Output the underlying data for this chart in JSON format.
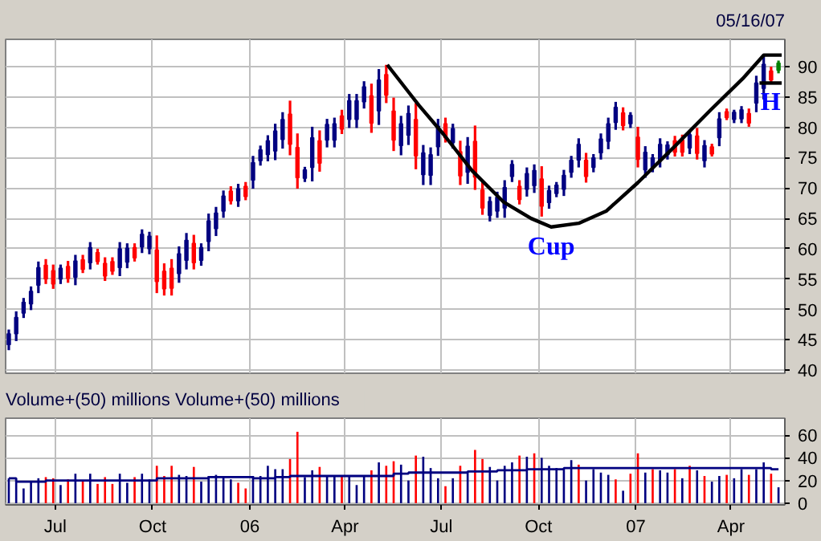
{
  "chart_data": [
    {
      "type": "candlestick",
      "subtitle": "05/16/07",
      "x": [
        "2005-05-18",
        "2005-05-25",
        "2005-06-01",
        "2005-06-08",
        "2005-06-15",
        "2005-06-22",
        "2005-06-29",
        "2005-07-06",
        "2005-07-13",
        "2005-07-20",
        "2005-07-27",
        "2005-08-03",
        "2005-08-10",
        "2005-08-17",
        "2005-08-24",
        "2005-08-31",
        "2005-09-07",
        "2005-09-14",
        "2005-09-21",
        "2005-09-28",
        "2005-10-05",
        "2005-10-12",
        "2005-10-19",
        "2005-10-26",
        "2005-11-02",
        "2005-11-09",
        "2005-11-16",
        "2005-11-23",
        "2005-11-30",
        "2005-12-07",
        "2005-12-14",
        "2005-12-21",
        "2005-12-28",
        "2006-01-04",
        "2006-01-11",
        "2006-01-18",
        "2006-01-25",
        "2006-02-01",
        "2006-02-08",
        "2006-02-15",
        "2006-02-22",
        "2006-03-01",
        "2006-03-08",
        "2006-03-15",
        "2006-03-22",
        "2006-03-29",
        "2006-04-05",
        "2006-04-12",
        "2006-04-19",
        "2006-04-26",
        "2006-05-03",
        "2006-05-10",
        "2006-05-17",
        "2006-05-24",
        "2006-05-31",
        "2006-06-07",
        "2006-06-14",
        "2006-06-21",
        "2006-06-28",
        "2006-07-05",
        "2006-07-12",
        "2006-07-19",
        "2006-07-26",
        "2006-08-02",
        "2006-08-09",
        "2006-08-16",
        "2006-08-23",
        "2006-08-30",
        "2006-09-06",
        "2006-09-13",
        "2006-09-20",
        "2006-09-27",
        "2006-10-04",
        "2006-10-11",
        "2006-10-18",
        "2006-10-25",
        "2006-11-01",
        "2006-11-08",
        "2006-11-15",
        "2006-11-22",
        "2006-11-29",
        "2006-12-06",
        "2006-12-13",
        "2006-12-20",
        "2006-12-27",
        "2007-01-03",
        "2007-01-10",
        "2007-01-17",
        "2007-01-24",
        "2007-01-31",
        "2007-02-07",
        "2007-02-14",
        "2007-02-21",
        "2007-02-28",
        "2007-03-07",
        "2007-03-14",
        "2007-03-21",
        "2007-03-28",
        "2007-04-04",
        "2007-04-11",
        "2007-04-18",
        "2007-04-25",
        "2007-05-02",
        "2007-05-09",
        "2007-05-16"
      ],
      "ohlc": [
        [
          44.2,
          46.7,
          43.3,
          46.0
        ],
        [
          46.0,
          49.7,
          44.8,
          48.7
        ],
        [
          49.4,
          51.9,
          48.6,
          51.2
        ],
        [
          50.9,
          53.8,
          49.9,
          53.0
        ],
        [
          54.0,
          57.9,
          52.7,
          56.9
        ],
        [
          57.3,
          58.3,
          54.2,
          55.0
        ],
        [
          56.4,
          57.4,
          53.4,
          54.2
        ],
        [
          55.0,
          57.4,
          54.2,
          56.8
        ],
        [
          57.1,
          58.0,
          54.4,
          55.1
        ],
        [
          55.3,
          59.0,
          54.0,
          58.0
        ],
        [
          58.2,
          59.0,
          56.0,
          56.6
        ],
        [
          57.7,
          61.1,
          56.6,
          60.2
        ],
        [
          59.4,
          60.0,
          57.4,
          57.9
        ],
        [
          57.6,
          58.6,
          54.7,
          55.5
        ],
        [
          57.9,
          58.6,
          55.7,
          56.3
        ],
        [
          56.9,
          61.1,
          55.5,
          60.0
        ],
        [
          57.8,
          60.9,
          56.8,
          60.1
        ],
        [
          60.2,
          60.9,
          57.9,
          58.5
        ],
        [
          60.3,
          63.2,
          59.3,
          62.4
        ],
        [
          60.0,
          62.8,
          59.1,
          62.1
        ],
        [
          59.8,
          62.2,
          52.7,
          54.6
        ],
        [
          56.3,
          57.6,
          52.3,
          53.4
        ],
        [
          56.8,
          58.3,
          52.3,
          53.5
        ],
        [
          55.9,
          60.4,
          54.4,
          59.2
        ],
        [
          58.1,
          62.6,
          56.6,
          61.4
        ],
        [
          60.9,
          62.3,
          56.6,
          57.7
        ],
        [
          58.1,
          60.9,
          57.2,
          60.2
        ],
        [
          61.2,
          65.8,
          59.6,
          64.6
        ],
        [
          63.3,
          66.9,
          62.1,
          65.9
        ],
        [
          66.2,
          69.6,
          65.1,
          68.7
        ],
        [
          69.5,
          70.3,
          67.3,
          67.9
        ],
        [
          67.9,
          70.7,
          66.9,
          69.9
        ],
        [
          70.3,
          71.0,
          68.0,
          68.6
        ],
        [
          71.3,
          75.3,
          69.9,
          74.2
        ],
        [
          74.5,
          77.0,
          73.7,
          76.3
        ],
        [
          75.5,
          78.7,
          74.4,
          77.8
        ],
        [
          76.1,
          80.6,
          74.6,
          79.4
        ],
        [
          78.0,
          82.5,
          76.5,
          81.3
        ],
        [
          82.2,
          84.4,
          75.4,
          77.2
        ],
        [
          76.7,
          79.0,
          69.9,
          71.7
        ],
        [
          71.6,
          73.5,
          71.0,
          73.0
        ],
        [
          73.4,
          80.1,
          71.1,
          78.3
        ],
        [
          77.8,
          79.5,
          72.7,
          74.1
        ],
        [
          77.9,
          81.4,
          76.7,
          80.5
        ],
        [
          77.9,
          81.6,
          76.7,
          80.6
        ],
        [
          81.9,
          82.9,
          78.9,
          79.7
        ],
        [
          81.3,
          85.5,
          79.9,
          84.4
        ],
        [
          81.3,
          85.5,
          79.9,
          84.4
        ],
        [
          84.2,
          87.6,
          83.1,
          86.7
        ],
        [
          85.2,
          87.2,
          79.1,
          80.7
        ],
        [
          82.7,
          89.6,
          80.4,
          87.8
        ],
        [
          88.7,
          90.3,
          84.0,
          85.3
        ],
        [
          82.7,
          84.9,
          76.1,
          77.9
        ],
        [
          77.0,
          81.9,
          75.4,
          80.6
        ],
        [
          78.7,
          83.6,
          77.1,
          82.3
        ],
        [
          81.3,
          84.0,
          73.1,
          75.3
        ],
        [
          72.2,
          77.1,
          70.5,
          75.8
        ],
        [
          72.1,
          76.7,
          70.5,
          75.5
        ],
        [
          76.8,
          81.4,
          75.3,
          80.2
        ],
        [
          80.6,
          81.6,
          77.5,
          78.3
        ],
        [
          77.5,
          80.6,
          76.5,
          79.8
        ],
        [
          76.0,
          77.8,
          70.5,
          72.0
        ],
        [
          72.6,
          78.4,
          70.7,
          76.9
        ],
        [
          77.7,
          80.3,
          69.7,
          71.8
        ],
        [
          69.7,
          71.1,
          65.6,
          66.7
        ],
        [
          65.5,
          68.6,
          64.5,
          67.8
        ],
        [
          66.2,
          69.4,
          65.1,
          68.5
        ],
        [
          66.7,
          71.3,
          65.1,
          70.1
        ],
        [
          71.9,
          74.6,
          71.0,
          73.9
        ],
        [
          70.3,
          71.3,
          67.3,
          68.1
        ],
        [
          69.8,
          73.4,
          68.6,
          72.4
        ],
        [
          70.4,
          73.9,
          69.2,
          72.9
        ],
        [
          71.5,
          73.6,
          65.3,
          67.0
        ],
        [
          67.6,
          70.4,
          66.6,
          69.6
        ],
        [
          69.1,
          71.0,
          68.5,
          70.5
        ],
        [
          69.8,
          73.0,
          68.7,
          72.1
        ],
        [
          72.6,
          75.3,
          71.7,
          74.6
        ],
        [
          74.6,
          78.2,
          73.4,
          77.2
        ],
        [
          74.6,
          75.8,
          70.9,
          71.9
        ],
        [
          73.4,
          75.6,
          72.6,
          75.0
        ],
        [
          75.8,
          79.0,
          74.7,
          78.1
        ],
        [
          77.7,
          81.6,
          76.4,
          80.6
        ],
        [
          80.8,
          84.2,
          79.6,
          83.3
        ],
        [
          82.4,
          83.3,
          79.5,
          80.3
        ],
        [
          80.6,
          82.5,
          79.9,
          82.0
        ],
        [
          78.4,
          80.1,
          73.4,
          74.7
        ],
        [
          73.0,
          76.9,
          71.7,
          75.9
        ],
        [
          73.4,
          75.6,
          72.6,
          75.0
        ],
        [
          74.6,
          78.2,
          73.4,
          77.2
        ],
        [
          75.5,
          77.7,
          74.7,
          77.1
        ],
        [
          77.8,
          78.6,
          75.2,
          75.9
        ],
        [
          77.9,
          78.8,
          75.2,
          75.9
        ],
        [
          76.6,
          79.6,
          75.6,
          78.8
        ],
        [
          78.6,
          79.9,
          74.7,
          75.7
        ],
        [
          74.5,
          77.9,
          73.4,
          77.0
        ],
        [
          76.8,
          77.3,
          75.2,
          75.6
        ],
        [
          78.3,
          82.5,
          76.9,
          81.4
        ],
        [
          82.6,
          83.1,
          81.2,
          81.6
        ],
        [
          81.3,
          82.9,
          80.7,
          82.5
        ],
        [
          81.4,
          83.5,
          80.7,
          82.9
        ],
        [
          82.3,
          83.1,
          80.1,
          80.7
        ],
        [
          84.0,
          88.5,
          82.5,
          87.3
        ],
        [
          86.4,
          91.9,
          84.6,
          90.4
        ],
        [
          89.3,
          90.0,
          87.2,
          87.8
        ],
        [
          89.4,
          91.0,
          88.9,
          90.6
        ]
      ],
      "colors": [
        "#000080",
        "#000080",
        "#000080",
        "#000080",
        "#000080",
        "#ff0000",
        "#ff0000",
        "#000080",
        "#ff0000",
        "#000080",
        "#ff0000",
        "#000080",
        "#ff0000",
        "#ff0000",
        "#ff0000",
        "#000080",
        "#000080",
        "#ff0000",
        "#000080",
        "#000080",
        "#ff0000",
        "#ff0000",
        "#ff0000",
        "#000080",
        "#000080",
        "#ff0000",
        "#000080",
        "#000080",
        "#000080",
        "#000080",
        "#ff0000",
        "#000080",
        "#ff0000",
        "#000080",
        "#000080",
        "#000080",
        "#000080",
        "#000080",
        "#ff0000",
        "#ff0000",
        "#000080",
        "#000080",
        "#ff0000",
        "#000080",
        "#000080",
        "#ff0000",
        "#000080",
        "#000080",
        "#000080",
        "#ff0000",
        "#000080",
        "#ff0000",
        "#ff0000",
        "#000080",
        "#000080",
        "#ff0000",
        "#000080",
        "#000080",
        "#000080",
        "#ff0000",
        "#000080",
        "#ff0000",
        "#000080",
        "#ff0000",
        "#ff0000",
        "#000080",
        "#000080",
        "#000080",
        "#000080",
        "#ff0000",
        "#000080",
        "#000080",
        "#ff0000",
        "#000080",
        "#000080",
        "#000080",
        "#000080",
        "#000080",
        "#ff0000",
        "#000080",
        "#000080",
        "#000080",
        "#000080",
        "#ff0000",
        "#000080",
        "#ff0000",
        "#000080",
        "#000080",
        "#000080",
        "#000080",
        "#ff0000",
        "#ff0000",
        "#000080",
        "#ff0000",
        "#000080",
        "#ff0000",
        "#000080",
        "#ff0000",
        "#000080",
        "#000080",
        "#ff0000",
        "#000080",
        "#000080",
        "#ff0000",
        "#008000"
      ],
      "series": [
        {
          "type": "line",
          "color": "#000000",
          "x": [
            "2006-05-11",
            "2006-06-10",
            "2006-07-03",
            "2006-07-30",
            "2006-08-29",
            "2006-09-24",
            "2006-10-13",
            "2006-11-08",
            "2006-12-04",
            "2007-01-03",
            "2007-02-07",
            "2007-03-13",
            "2007-04-12",
            "2007-05-02",
            "2007-05-19"
          ],
          "values": [
            90.3,
            83.6,
            78.9,
            72.9,
            67.7,
            65.0,
            63.6,
            64.2,
            66.2,
            70.9,
            76.9,
            82.9,
            88.0,
            91.9,
            91.9
          ]
        },
        {
          "type": "line",
          "color": "#000000",
          "x": [
            "2007-04-28",
            "2007-05-19"
          ],
          "values": [
            87.3,
            87.3
          ]
        }
      ],
      "annotations": [
        "Cup",
        "H"
      ],
      "xlim": [
        "2005-05-15",
        "2007-05-22"
      ],
      "xticks": [
        {
          "value": "2005-07-01",
          "label": null
        },
        {
          "value": "2005-10-01",
          "label": null
        },
        {
          "value": "2006-01-01",
          "label": null
        },
        {
          "value": "2006-04-01",
          "label": null
        },
        {
          "value": "2006-07-01",
          "label": null
        },
        {
          "value": "2006-10-01",
          "label": null
        },
        {
          "value": "2007-01-01",
          "label": null
        },
        {
          "value": "2007-04-01",
          "label": null
        }
      ],
      "ylim": [
        39.5,
        94.5
      ],
      "yticks": [
        40,
        45,
        50,
        55,
        60,
        65,
        70,
        75,
        80,
        85,
        90
      ],
      "grid": true,
      "tick_labels": "y"
    },
    {
      "type": "bar",
      "title": "Volume+(50) millions",
      "subtitle": "Volume+(50) millions",
      "x": [
        "2005-05-18",
        "2005-05-25",
        "2005-06-01",
        "2005-06-08",
        "2005-06-15",
        "2005-06-22",
        "2005-06-29",
        "2005-07-06",
        "2005-07-13",
        "2005-07-20",
        "2005-07-27",
        "2005-08-03",
        "2005-08-10",
        "2005-08-17",
        "2005-08-24",
        "2005-08-31",
        "2005-09-07",
        "2005-09-14",
        "2005-09-21",
        "2005-09-28",
        "2005-10-05",
        "2005-10-12",
        "2005-10-19",
        "2005-10-26",
        "2005-11-02",
        "2005-11-09",
        "2005-11-16",
        "2005-11-23",
        "2005-11-30",
        "2005-12-07",
        "2005-12-14",
        "2005-12-21",
        "2005-12-28",
        "2006-01-04",
        "2006-01-11",
        "2006-01-18",
        "2006-01-25",
        "2006-02-01",
        "2006-02-08",
        "2006-02-15",
        "2006-02-22",
        "2006-03-01",
        "2006-03-08",
        "2006-03-15",
        "2006-03-22",
        "2006-03-29",
        "2006-04-05",
        "2006-04-12",
        "2006-04-19",
        "2006-04-26",
        "2006-05-03",
        "2006-05-10",
        "2006-05-17",
        "2006-05-24",
        "2006-05-31",
        "2006-06-07",
        "2006-06-14",
        "2006-06-21",
        "2006-06-28",
        "2006-07-05",
        "2006-07-12",
        "2006-07-19",
        "2006-07-26",
        "2006-08-02",
        "2006-08-09",
        "2006-08-16",
        "2006-08-23",
        "2006-08-30",
        "2006-09-06",
        "2006-09-13",
        "2006-09-20",
        "2006-09-27",
        "2006-10-04",
        "2006-10-11",
        "2006-10-18",
        "2006-10-25",
        "2006-11-01",
        "2006-11-08",
        "2006-11-15",
        "2006-11-22",
        "2006-11-29",
        "2006-12-06",
        "2006-12-13",
        "2006-12-20",
        "2006-12-27",
        "2007-01-03",
        "2007-01-10",
        "2007-01-17",
        "2007-01-24",
        "2007-01-31",
        "2007-02-07",
        "2007-02-14",
        "2007-02-21",
        "2007-02-28",
        "2007-03-07",
        "2007-03-14",
        "2007-03-21",
        "2007-03-28",
        "2007-04-04",
        "2007-04-11",
        "2007-04-18",
        "2007-04-25",
        "2007-05-02",
        "2007-05-09",
        "2007-05-16"
      ],
      "series": [
        {
          "type": "bar",
          "values": [
            22,
            19,
            13,
            19,
            22,
            23,
            22,
            16,
            21,
            26,
            20,
            26,
            17,
            23,
            17,
            26,
            18,
            23,
            26,
            21,
            33,
            24,
            33,
            25,
            24,
            32,
            19,
            24,
            25,
            23,
            21,
            18,
            13,
            24,
            24,
            33,
            30,
            30,
            39,
            63,
            23,
            29,
            32,
            24,
            24,
            24,
            24,
            16,
            24,
            29,
            36,
            33,
            37,
            34,
            20,
            42,
            41,
            31,
            22,
            15,
            22,
            33,
            28,
            47,
            39,
            32,
            20,
            33,
            36,
            42,
            41,
            44,
            40,
            33,
            31,
            30,
            38,
            34,
            20,
            30,
            27,
            25,
            21,
            11,
            26,
            44,
            27,
            30,
            29,
            27,
            30,
            22,
            33,
            29,
            24,
            19,
            24,
            25,
            22,
            30,
            25,
            30,
            36,
            26,
            14
          ],
          "colors": [
            "#000080",
            "#000080",
            "#000080",
            "#000080",
            "#000080",
            "#ff0000",
            "#ff0000",
            "#000080",
            "#ff0000",
            "#000080",
            "#ff0000",
            "#000080",
            "#ff0000",
            "#ff0000",
            "#ff0000",
            "#000080",
            "#000080",
            "#ff0000",
            "#000080",
            "#000080",
            "#ff0000",
            "#ff0000",
            "#ff0000",
            "#000080",
            "#000080",
            "#ff0000",
            "#000080",
            "#000080",
            "#000080",
            "#000080",
            "#000080",
            "#ff0000",
            "#ff0000",
            "#000080",
            "#000080",
            "#000080",
            "#000080",
            "#000080",
            "#ff0000",
            "#ff0000",
            "#000080",
            "#000080",
            "#ff0000",
            "#000080",
            "#000080",
            "#ff0000",
            "#000080",
            "#000080",
            "#000080",
            "#ff0000",
            "#000080",
            "#ff0000",
            "#ff0000",
            "#000080",
            "#000080",
            "#ff0000",
            "#000080",
            "#000080",
            "#000080",
            "#ff0000",
            "#000080",
            "#ff0000",
            "#000080",
            "#ff0000",
            "#ff0000",
            "#000080",
            "#000080",
            "#000080",
            "#000080",
            "#ff0000",
            "#000080",
            "#ff0000",
            "#000080",
            "#000080",
            "#000080",
            "#000080",
            "#000080",
            "#ff0000",
            "#000080",
            "#000080",
            "#000080",
            "#000080",
            "#ff0000",
            "#000080",
            "#ff0000",
            "#ff0000",
            "#000080",
            "#ff0000",
            "#000080",
            "#000080",
            "#ff0000",
            "#000080",
            "#ff0000",
            "#000080",
            "#ff0000",
            "#000080",
            "#000080",
            "#ff0000",
            "#000080",
            "#000080",
            "#ff0000",
            "#000080",
            "#000080",
            "#ff0000",
            "#000080"
          ]
        },
        {
          "type": "step",
          "color": "#000080",
          "x": [
            "2005-05-18",
            "2005-05-25",
            "2005-06-22",
            "2005-10-05",
            "2005-11-23",
            "2006-01-04",
            "2006-01-25",
            "2006-02-08",
            "2006-05-17",
            "2006-05-31",
            "2006-07-26",
            "2006-08-23",
            "2006-09-20",
            "2006-10-25",
            "2007-05-09",
            "2007-05-16"
          ],
          "values": [
            22,
            19,
            20,
            22,
            23,
            22,
            23,
            24,
            26,
            27,
            28,
            29,
            30,
            31,
            30,
            30
          ]
        }
      ],
      "xlim": [
        "2005-05-15",
        "2007-05-22"
      ],
      "xticks": [
        {
          "value": "2005-07-01",
          "label": "Jul"
        },
        {
          "value": "2005-10-01",
          "label": "Oct"
        },
        {
          "value": "2006-01-01",
          "label": "06"
        },
        {
          "value": "2006-04-01",
          "label": "Apr"
        },
        {
          "value": "2006-07-01",
          "label": "Jul"
        },
        {
          "value": "2006-10-01",
          "label": "Oct"
        },
        {
          "value": "2007-01-01",
          "label": "07"
        },
        {
          "value": "2007-04-01",
          "label": "Apr"
        }
      ],
      "ylim": [
        -1.5,
        75
      ],
      "yticks": [
        0,
        20,
        40,
        60
      ],
      "grid": true
    }
  ]
}
